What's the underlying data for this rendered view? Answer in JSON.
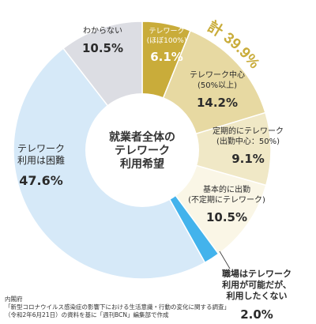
{
  "chart_data": {
    "type": "pie",
    "variant": "donut",
    "center_label": [
      "就業者全体の",
      "テレワーク",
      "利用希望"
    ],
    "total_label": "計 39.9%",
    "slices": [
      {
        "label": [
          "テレワーク",
          "(ほぼ100%)"
        ],
        "value": 6.1,
        "value_label": "6.1%",
        "color": "#c9ac3a",
        "text_color": "#ffffff"
      },
      {
        "label": [
          "テレワーク中心",
          "(50%以上)"
        ],
        "value": 14.2,
        "value_label": "14.2%",
        "color": "#e7d9a2",
        "text_color": "#2b2b2b"
      },
      {
        "label": [
          "定期的にテレワーク",
          "(出勤中心：50%)"
        ],
        "value": 9.1,
        "value_label": "9.1%",
        "color": "#f0e8c6",
        "text_color": "#2b2b2b"
      },
      {
        "label": [
          "基本的に出勤",
          "(不定期にテレワーク)"
        ],
        "value": 10.5,
        "value_label": "10.5%",
        "color": "#faf6e6",
        "text_color": "#2b2b2b"
      },
      {
        "label": [
          "職場はテレワーク",
          "利用が可能だが、",
          "利用したくない"
        ],
        "value": 2.0,
        "value_label": "2.0%",
        "color": "#43b3ec",
        "text_color": "#2b2b2b"
      },
      {
        "label": [
          "テレワーク",
          "利用は困難"
        ],
        "value": 47.6,
        "value_label": "47.6%",
        "color": "#d6e9f8",
        "text_color": "#2b2b2b"
      },
      {
        "label": [
          "わからない"
        ],
        "value": 10.5,
        "value_label": "10.5%",
        "color": "#dcdde3",
        "text_color": "#2b2b2b"
      }
    ],
    "legend": "none"
  },
  "source": [
    "内閣府",
    "「新型コロナウイルス感染症の影響下における生活意識・行動の変化に関する調査」",
    "（令和2年6月21日）の資料を基に「週刊BCN」編集部で作成"
  ],
  "colors": {
    "accent": "#c9ac3a",
    "leader_line": "#333333"
  }
}
